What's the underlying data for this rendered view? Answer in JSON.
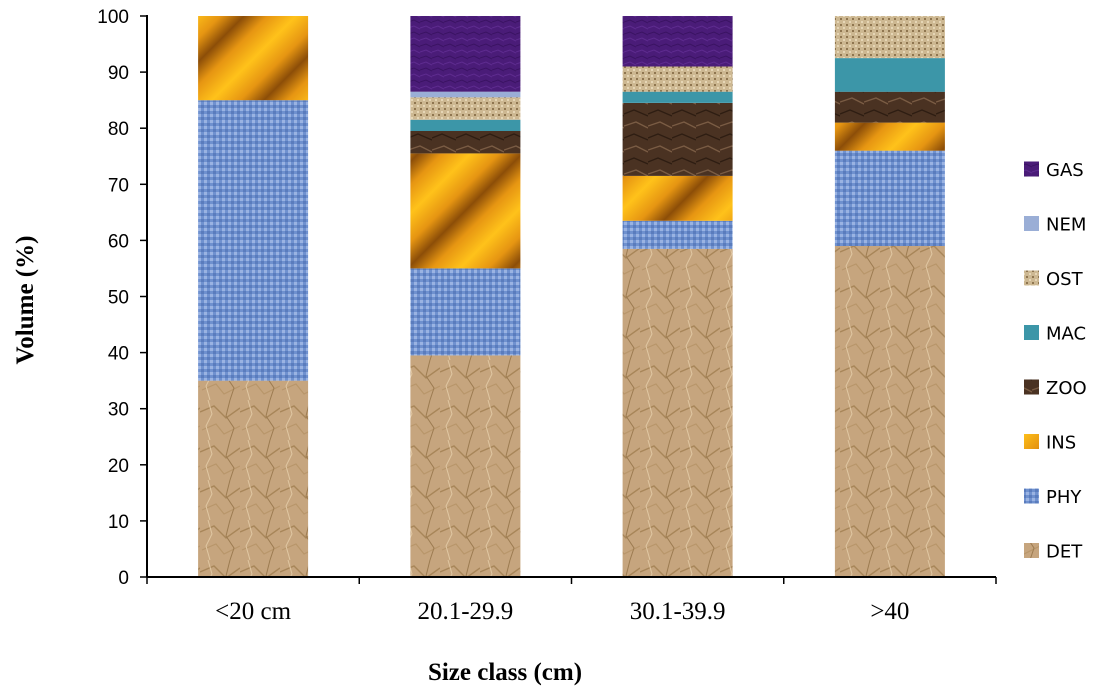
{
  "chart_data": {
    "type": "bar",
    "stacked": true,
    "title": "",
    "xlabel": "Size class (cm)",
    "ylabel": "Volume (%)",
    "ylim": [
      0,
      100
    ],
    "yticks": [
      0,
      10,
      20,
      30,
      40,
      50,
      60,
      70,
      80,
      90,
      100
    ],
    "grid": false,
    "legend_position": "right",
    "categories": [
      "<20 cm",
      "20.1-29.9",
      "30.1-39.9",
      ">40"
    ],
    "series": [
      {
        "name": "DET",
        "color": "#c6a57e",
        "values": [
          35,
          39.5,
          58.5,
          59
        ]
      },
      {
        "name": "PHY",
        "color": "#6f91cf",
        "values": [
          50,
          15.5,
          5,
          17
        ]
      },
      {
        "name": "INS",
        "color": "#e69a12",
        "values": [
          15,
          20.5,
          8,
          5
        ]
      },
      {
        "name": "ZOO",
        "color": "#4a3222",
        "values": [
          0,
          4,
          13,
          5.5
        ]
      },
      {
        "name": "MAC",
        "color": "#3c96a8",
        "values": [
          0,
          2,
          2,
          6
        ]
      },
      {
        "name": "OST",
        "color": "#c8b48c",
        "values": [
          0,
          4,
          4.5,
          7.5
        ]
      },
      {
        "name": "NEM",
        "color": "#9aaed6",
        "values": [
          0,
          1,
          0,
          0
        ]
      },
      {
        "name": "GAS",
        "color": "#4a1c78",
        "values": [
          0,
          13.5,
          9,
          0
        ]
      }
    ]
  }
}
